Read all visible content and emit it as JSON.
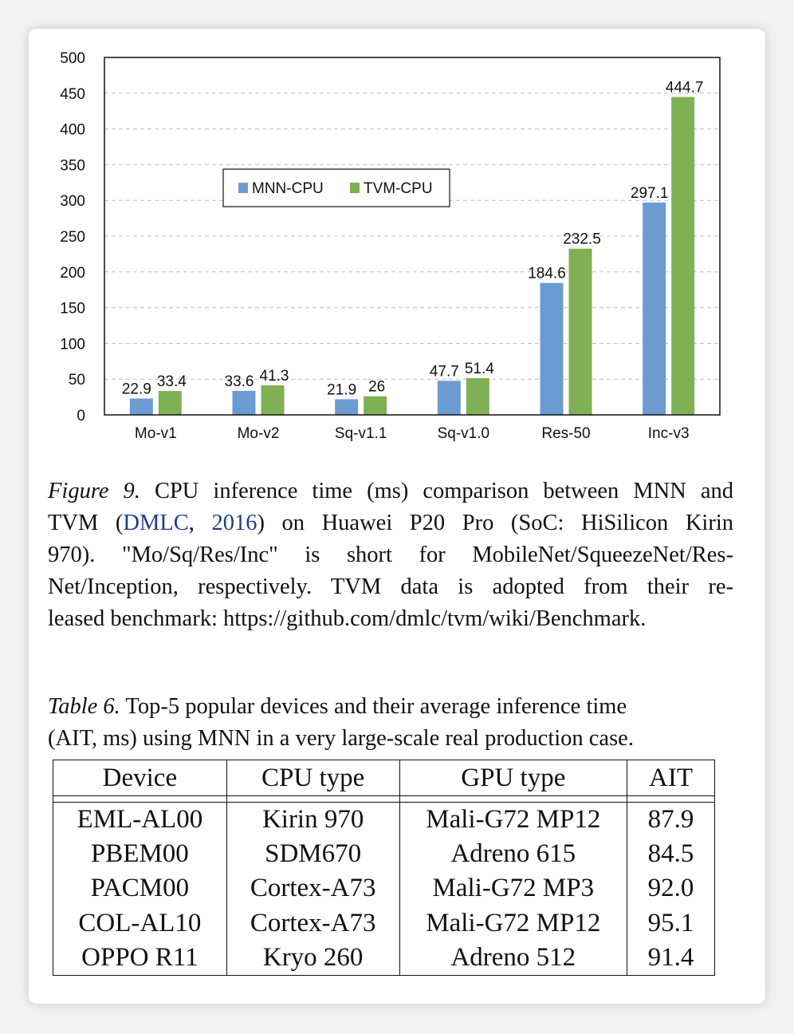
{
  "chart_data": {
    "type": "bar",
    "categories": [
      "Mo-v1",
      "Mo-v2",
      "Sq-v1.1",
      "Sq-v1.0",
      "Res-50",
      "Inc-v3"
    ],
    "series": [
      {
        "name": "MNN-CPU",
        "color": "#6c9bd2",
        "values": [
          22.9,
          33.6,
          21.9,
          47.7,
          184.6,
          297.1
        ]
      },
      {
        "name": "TVM-CPU",
        "color": "#7fb054",
        "values": [
          33.4,
          41.3,
          26,
          51.4,
          232.5,
          444.7
        ]
      }
    ],
    "ylim": [
      0,
      500
    ],
    "yticks": [
      "0",
      "50",
      "100",
      "150",
      "200",
      "250",
      "300",
      "350",
      "400",
      "450",
      "500"
    ],
    "grid": true,
    "legend": "upper-left"
  },
  "figure": {
    "label": "Figure 9.",
    "text_before_cite": " CPU inference time (ms) comparison between MNN and",
    "line2_start": "TVM (",
    "cite_name": "DMLC",
    "cite_sep": ", ",
    "cite_year": "2016",
    "line2_end": ") on Huawei P20 Pro (SoC: HiSilicon Kirin",
    "line3": "970).  \"Mo/Sq/Res/Inc\" is short for MobileNet/SqueezeNet/Res-",
    "line4": "Net/Inception, respectively.  TVM data is adopted from their re-",
    "line5": "leased benchmark: https://github.com/dmlc/tvm/wiki/Benchmark."
  },
  "table": {
    "label": "Table 6.",
    "caption_line1": " Top-5 popular devices and their average inference time",
    "caption_line2": "(AIT, ms) using MNN in a very large-scale real production case.",
    "headers": [
      "Device",
      "CPU type",
      "GPU type",
      "AIT"
    ],
    "rows": [
      [
        "EML-AL00",
        "Kirin 970",
        "Mali-G72 MP12",
        "87.9"
      ],
      [
        "PBEM00",
        "SDM670",
        "Adreno 615",
        "84.5"
      ],
      [
        "PACM00",
        "Cortex-A73",
        "Mali-G72 MP3",
        "92.0"
      ],
      [
        "COL-AL10",
        "Cortex-A73",
        "Mali-G72 MP12",
        "95.1"
      ],
      [
        "OPPO R11",
        "Kryo 260",
        "Adreno 512",
        "91.4"
      ]
    ]
  }
}
